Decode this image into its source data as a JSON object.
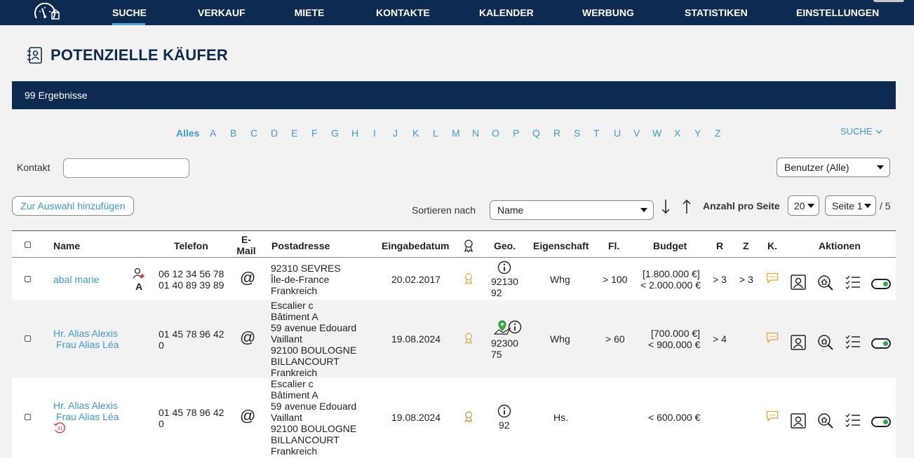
{
  "nav": {
    "items": [
      "SUCHE",
      "VERKAUF",
      "MIETE",
      "KONTAKTE",
      "KALENDER",
      "WERBUNG",
      "STATISTIKEN",
      "EINSTELLUNGEN"
    ],
    "active": "SUCHE",
    "accent": "#4ea3d9",
    "background": "#0d2a50"
  },
  "page": {
    "title": "POTENZIELLE KÄUFER",
    "title_icon": "contact-book-icon"
  },
  "results": {
    "count_text": "99 Ergebnisse"
  },
  "alphabet": [
    "Alles",
    "A",
    "B",
    "C",
    "D",
    "E",
    "F",
    "G",
    "H",
    "I",
    "J",
    "K",
    "L",
    "M",
    "N",
    "O",
    "P",
    "Q",
    "R",
    "S",
    "T",
    "U",
    "V",
    "W",
    "X",
    "Y",
    "Z"
  ],
  "search_toggle": "SUCHE",
  "filters": {
    "kontakt_label": "Kontakt",
    "kontakt_value": "",
    "benutzer_select": "Benutzer (Alle)",
    "add_selection_button": "Zur Auswahl hinzufügen",
    "sort_label": "Sortieren nach",
    "sort_value": "Name",
    "per_page_label": "Anzahl pro Seite",
    "per_page_value": "20",
    "page_value": "Seite 1",
    "page_total": "/ 5"
  },
  "table": {
    "headers": {
      "name": "Name",
      "telefon": "Telefon",
      "email_1": "E-",
      "email_2": "Mail",
      "postadresse": "Postadresse",
      "eingabedatum": "Eingabedatum",
      "geo": "Geo.",
      "eigenschaft": "Eigenschaft",
      "fl": "Fl.",
      "budget": "Budget",
      "r": "R",
      "z": "Z",
      "k": "K.",
      "aktionen": "Aktionen"
    },
    "rows": [
      {
        "name_1": "abal marie",
        "name_2": "",
        "user_badge": "A",
        "phone_1": "06 12 34 56 78",
        "phone_2": "01 40 89 39 89",
        "address": [
          "92310 SEVRES",
          "Île-de-France",
          "Frankreich"
        ],
        "date": "20.02.2017",
        "geo_1": "92130",
        "geo_2": "92",
        "eigenschaft": "Whg",
        "fl": "> 100",
        "budget_1": "[1.800.000 €]",
        "budget_2": "< 2.000.000 €",
        "r": "> 3",
        "z": "> 3",
        "badge_color": "#e0a63a"
      },
      {
        "name_1": "Hr. Alias Alexis",
        "name_2": "Frau Alias Léa",
        "phone_1": "01 45 78 96 42",
        "phone_2": "0",
        "address": [
          "Escalier c",
          "Bâtiment A",
          "59 avenue Edouard",
          "Vaillant",
          "92100 BOULOGNE",
          "BILLANCOURT",
          "Frankreich"
        ],
        "date": "19.08.2024",
        "geo_1": "92300",
        "geo_2": "75",
        "eigenschaft": "Whg",
        "fl": "> 60",
        "budget_1": "[700.000 €]",
        "budget_2": "< 900.000 €",
        "r": "> 4",
        "z": "",
        "badge_color": "#e0a63a"
      },
      {
        "name_1": "Hr. Alias Alexis",
        "name_2": "Frau Alias Léa",
        "calendar_badge": "31",
        "phone_1": "01 45 78 96 42",
        "phone_2": "0",
        "address": [
          "Escalier c",
          "Bâtiment A",
          "59 avenue Edouard",
          "Vaillant",
          "92100 BOULOGNE",
          "BILLANCOURT",
          "Frankreich"
        ],
        "date": "19.08.2024",
        "geo_1": "92",
        "geo_2": "",
        "eigenschaft": "Hs.",
        "fl": "",
        "budget_1": "< 600.000 €",
        "budget_2": "",
        "r": "",
        "z": "",
        "badge_color": "#d4843a"
      }
    ]
  }
}
